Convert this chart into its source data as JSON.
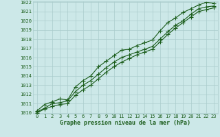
{
  "x": [
    0,
    1,
    2,
    3,
    4,
    5,
    6,
    7,
    8,
    9,
    10,
    11,
    12,
    13,
    14,
    15,
    16,
    17,
    18,
    19,
    20,
    21,
    22,
    23
  ],
  "line1": [
    1010.1,
    1010.5,
    1011.0,
    1011.1,
    1011.3,
    1012.3,
    1013.0,
    1013.5,
    1014.2,
    1014.9,
    1015.5,
    1016.0,
    1016.3,
    1016.6,
    1016.9,
    1017.2,
    1018.0,
    1018.8,
    1019.5,
    1020.0,
    1020.7,
    1021.3,
    1021.5,
    1021.6
  ],
  "line2": [
    1010.2,
    1010.9,
    1011.2,
    1011.5,
    1011.4,
    1012.8,
    1013.5,
    1014.0,
    1015.0,
    1015.6,
    1016.2,
    1016.8,
    1016.9,
    1017.3,
    1017.6,
    1017.9,
    1018.9,
    1019.8,
    1020.3,
    1020.9,
    1021.3,
    1021.7,
    1022.0,
    1021.9
  ],
  "line3": [
    1010.0,
    1010.4,
    1010.7,
    1010.9,
    1011.0,
    1011.9,
    1012.5,
    1013.0,
    1013.7,
    1014.4,
    1015.0,
    1015.5,
    1015.9,
    1016.3,
    1016.6,
    1016.9,
    1017.7,
    1018.5,
    1019.2,
    1019.8,
    1020.4,
    1021.0,
    1021.2,
    1021.4
  ],
  "ylim": [
    1010,
    1022
  ],
  "xlim": [
    -0.5,
    23.5
  ],
  "yticks": [
    1010,
    1011,
    1012,
    1013,
    1014,
    1015,
    1016,
    1017,
    1018,
    1019,
    1020,
    1021,
    1022
  ],
  "xticks": [
    0,
    1,
    2,
    3,
    4,
    5,
    6,
    7,
    8,
    9,
    10,
    11,
    12,
    13,
    14,
    15,
    16,
    17,
    18,
    19,
    20,
    21,
    22,
    23
  ],
  "line_color": "#1a5c1a",
  "bg_color": "#cce8e8",
  "grid_color": "#aacccc",
  "xlabel": "Graphe pression niveau de la mer (hPa)",
  "xlabel_fontsize": 6,
  "tick_fontsize": 5,
  "marker": "+",
  "marker_size": 4,
  "linewidth": 0.8
}
